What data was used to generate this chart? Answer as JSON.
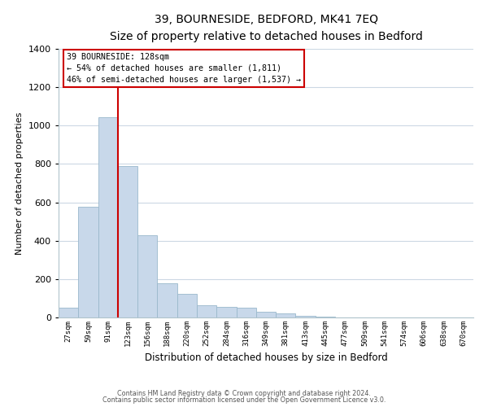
{
  "title": "39, BOURNESIDE, BEDFORD, MK41 7EQ",
  "subtitle": "Size of property relative to detached houses in Bedford",
  "xlabel": "Distribution of detached houses by size in Bedford",
  "ylabel": "Number of detached properties",
  "categories": [
    "27sqm",
    "59sqm",
    "91sqm",
    "123sqm",
    "156sqm",
    "188sqm",
    "220sqm",
    "252sqm",
    "284sqm",
    "316sqm",
    "349sqm",
    "381sqm",
    "413sqm",
    "445sqm",
    "477sqm",
    "509sqm",
    "541sqm",
    "574sqm",
    "606sqm",
    "638sqm",
    "670sqm"
  ],
  "values": [
    50,
    578,
    1042,
    790,
    430,
    178,
    125,
    65,
    55,
    50,
    28,
    22,
    10,
    5,
    2,
    0,
    0,
    0,
    0,
    0,
    0
  ],
  "bar_color": "#c8d8ea",
  "bar_edge_color": "#9ab8cc",
  "vline_color": "#cc0000",
  "ylim": [
    0,
    1400
  ],
  "yticks": [
    0,
    200,
    400,
    600,
    800,
    1000,
    1200,
    1400
  ],
  "annotation_title": "39 BOURNESIDE: 128sqm",
  "annotation_line1": "← 54% of detached houses are smaller (1,811)",
  "annotation_line2": "46% of semi-detached houses are larger (1,537) →",
  "annotation_box_color": "#ffffff",
  "annotation_box_edge": "#cc0000",
  "footer_line1": "Contains HM Land Registry data © Crown copyright and database right 2024.",
  "footer_line2": "Contains public sector information licensed under the Open Government Licence v3.0.",
  "background_color": "#ffffff",
  "grid_color": "#ccd8e4"
}
